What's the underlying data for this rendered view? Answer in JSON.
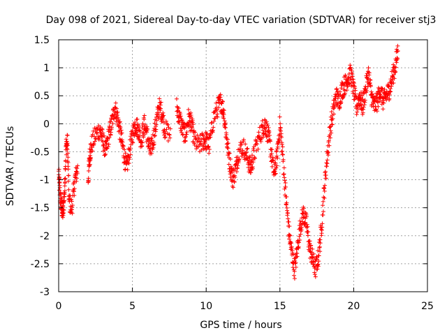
{
  "chart_data": {
    "type": "scatter",
    "title": "Day 098 of 2021, Sidereal Day-to-day VTEC variation (SDTVAR) for receiver stj3",
    "xlabel": "GPS time / hours",
    "ylabel": "SDTVAR / TECUs",
    "xlim": [
      0,
      25
    ],
    "ylim": [
      -3,
      1.5
    ],
    "xticks": [
      0,
      5,
      10,
      15,
      20,
      25
    ],
    "yticks": [
      1.5,
      1,
      0.5,
      0,
      -0.5,
      -1,
      -1.5,
      -2,
      -2.5,
      -3
    ],
    "xtick_labels": [
      "0",
      "5",
      "10",
      "15",
      "20",
      "25"
    ],
    "ytick_labels": [
      "1.5",
      "1",
      "0.5",
      "0",
      "-0.5",
      "-1",
      "-1.5",
      "-2",
      "-2.5",
      "-3"
    ],
    "grid": true,
    "marker": "plus",
    "color": "#ff0000",
    "series": [
      {
        "trend": [
          [
            0.0,
            -0.9
          ],
          [
            0.1,
            -1.3
          ],
          [
            0.2,
            -1.5
          ],
          [
            0.3,
            -1.6
          ],
          [
            0.4,
            -1.2
          ],
          [
            0.5,
            -0.4
          ],
          [
            0.6,
            -0.35
          ],
          [
            0.7,
            -1.4
          ],
          [
            0.9,
            -1.5
          ],
          [
            1.1,
            -1.0
          ],
          [
            1.3,
            -0.8
          ],
          [
            2.0,
            -1.0
          ],
          [
            2.1,
            -0.6
          ],
          [
            2.2,
            -0.4
          ],
          [
            2.5,
            -0.2
          ],
          [
            2.8,
            -0.1
          ],
          [
            3.0,
            -0.3
          ],
          [
            3.2,
            -0.5
          ],
          [
            3.4,
            -0.2
          ],
          [
            3.6,
            0.0
          ],
          [
            3.8,
            0.3
          ],
          [
            4.0,
            0.1
          ],
          [
            4.2,
            -0.2
          ],
          [
            4.4,
            -0.5
          ],
          [
            4.6,
            -0.8
          ],
          [
            4.8,
            -0.5
          ],
          [
            5.0,
            -0.2
          ],
          [
            5.2,
            0.0
          ],
          [
            5.4,
            -0.1
          ],
          [
            5.6,
            -0.3
          ],
          [
            5.8,
            0.0
          ],
          [
            6.0,
            -0.2
          ],
          [
            6.2,
            -0.5
          ],
          [
            6.4,
            -0.3
          ],
          [
            6.6,
            0.0
          ],
          [
            6.8,
            0.3
          ],
          [
            7.0,
            0.2
          ],
          [
            7.2,
            -0.1
          ],
          [
            7.6,
            -0.2
          ],
          [
            8.0,
            0.3
          ],
          [
            8.2,
            0.1
          ],
          [
            8.4,
            -0.1
          ],
          [
            8.6,
            -0.2
          ],
          [
            8.8,
            0.1
          ],
          [
            9.0,
            0.0
          ],
          [
            9.2,
            -0.3
          ],
          [
            9.5,
            -0.4
          ],
          [
            9.8,
            -0.3
          ],
          [
            10.0,
            -0.3
          ],
          [
            10.2,
            -0.4
          ],
          [
            10.5,
            0.1
          ],
          [
            10.8,
            0.3
          ],
          [
            11.0,
            0.4
          ],
          [
            11.2,
            0.2
          ],
          [
            11.4,
            -0.3
          ],
          [
            11.6,
            -0.7
          ],
          [
            11.8,
            -1.0
          ],
          [
            12.0,
            -0.8
          ],
          [
            12.2,
            -0.5
          ],
          [
            12.5,
            -0.4
          ],
          [
            12.8,
            -0.6
          ],
          [
            13.0,
            -0.8
          ],
          [
            13.2,
            -0.6
          ],
          [
            13.5,
            -0.3
          ],
          [
            13.8,
            -0.1
          ],
          [
            14.0,
            0.0
          ],
          [
            14.2,
            -0.2
          ],
          [
            14.4,
            -0.5
          ],
          [
            14.6,
            -0.9
          ],
          [
            14.8,
            -0.6
          ],
          [
            15.0,
            0.0
          ],
          [
            15.2,
            -0.6
          ],
          [
            15.4,
            -1.3
          ],
          [
            15.6,
            -1.9
          ],
          [
            15.8,
            -2.3
          ],
          [
            16.0,
            -2.6
          ],
          [
            16.2,
            -2.2
          ],
          [
            16.4,
            -1.8
          ],
          [
            16.6,
            -1.6
          ],
          [
            16.8,
            -1.8
          ],
          [
            17.0,
            -2.2
          ],
          [
            17.2,
            -2.4
          ],
          [
            17.4,
            -2.6
          ],
          [
            17.6,
            -2.4
          ],
          [
            17.8,
            -1.9
          ],
          [
            18.0,
            -1.2
          ],
          [
            18.2,
            -0.6
          ],
          [
            18.4,
            -0.1
          ],
          [
            18.6,
            0.2
          ],
          [
            18.8,
            0.5
          ],
          [
            19.0,
            0.4
          ],
          [
            19.2,
            0.6
          ],
          [
            19.4,
            0.7
          ],
          [
            19.6,
            0.8
          ],
          [
            19.8,
            0.9
          ],
          [
            20.0,
            0.6
          ],
          [
            20.2,
            0.3
          ],
          [
            20.4,
            0.5
          ],
          [
            20.6,
            0.3
          ],
          [
            20.8,
            0.6
          ],
          [
            21.0,
            0.9
          ],
          [
            21.2,
            0.5
          ],
          [
            21.4,
            0.3
          ],
          [
            21.6,
            0.4
          ],
          [
            21.8,
            0.6
          ],
          [
            22.0,
            0.4
          ],
          [
            22.2,
            0.5
          ],
          [
            22.4,
            0.6
          ],
          [
            22.6,
            0.8
          ],
          [
            22.8,
            1.0
          ],
          [
            23.0,
            1.3
          ]
        ]
      }
    ]
  }
}
